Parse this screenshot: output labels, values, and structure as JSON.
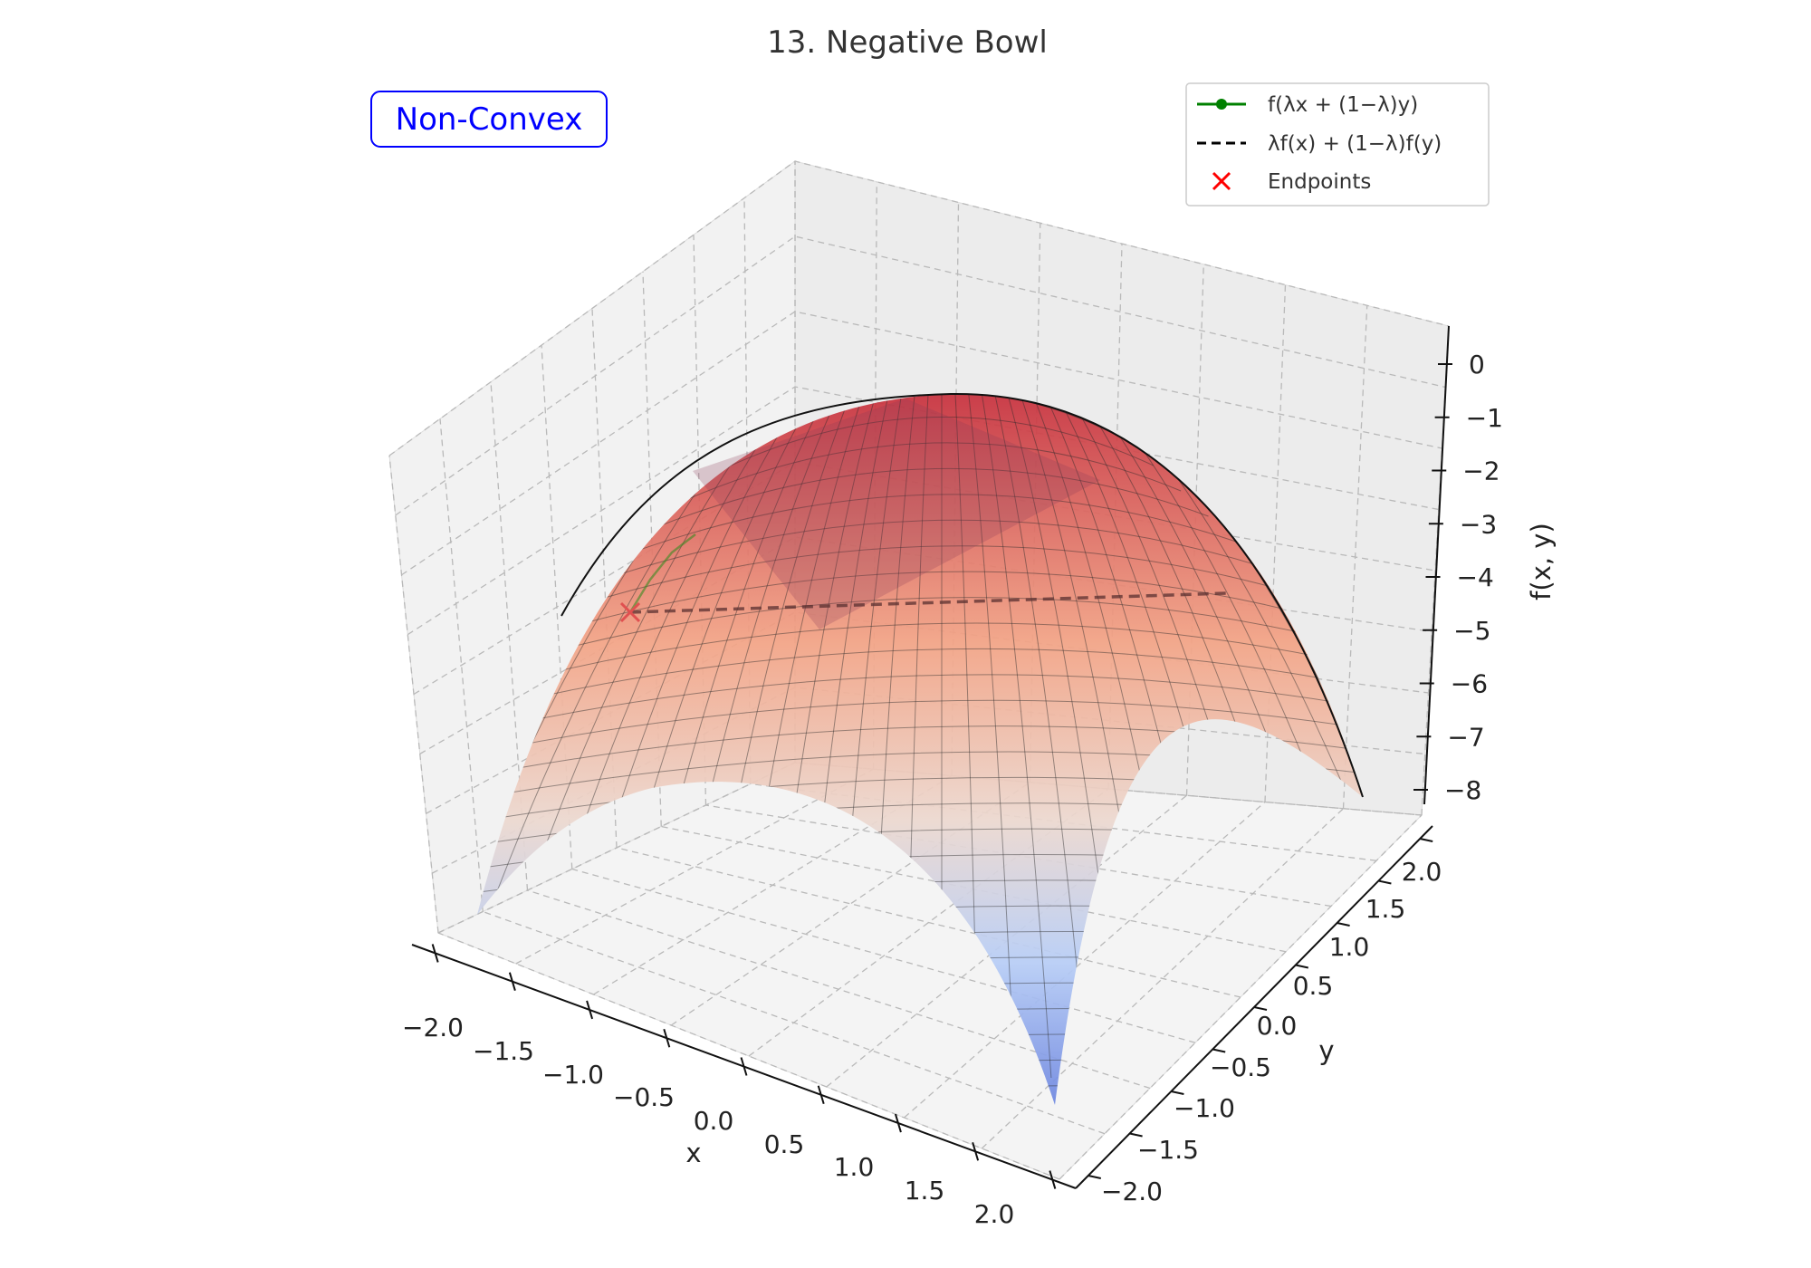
{
  "chart_data": {
    "type": "surface3d",
    "title": "13. Negative Bowl",
    "function": "f(x, y) = -(x^2 + y^2)",
    "xlabel": "x",
    "ylabel": "y",
    "zlabel": "f(x, y)",
    "xlim": [
      -2,
      2
    ],
    "ylim": [
      -2,
      2
    ],
    "zlim": [
      -8,
      0
    ],
    "x_ticks": [
      "−2.0",
      "−1.5",
      "−1.0",
      "−0.5",
      "0.0",
      "0.5",
      "1.0",
      "1.5",
      "2.0"
    ],
    "y_ticks": [
      "−2.0",
      "−1.5",
      "−1.0",
      "−0.5",
      "0.0",
      "0.5",
      "1.0",
      "1.5",
      "2.0"
    ],
    "z_ticks": [
      "0",
      "−1",
      "−2",
      "−3",
      "−4",
      "−5",
      "−6",
      "−7",
      "−8"
    ],
    "x_tick_values": [
      -2,
      -1.5,
      -1,
      -0.5,
      0,
      0.5,
      1,
      1.5,
      2
    ],
    "y_tick_values": [
      -2,
      -1.5,
      -1,
      -0.5,
      0,
      0.5,
      1,
      1.5,
      2
    ],
    "z_tick_values": [
      0,
      -1,
      -2,
      -3,
      -4,
      -5,
      -6,
      -7,
      -8
    ],
    "grid": true,
    "colormap": [
      "#3b4cc0",
      "#b40426"
    ],
    "legend_placement": "top-right",
    "legend": [
      {
        "label": "f(λx + (1−λ)y)",
        "style": "solid-marker",
        "color": "#008000"
      },
      {
        "label": "λf(x) + (1−λ)f(y)",
        "style": "dashed",
        "color": "#000000"
      },
      {
        "label": "Endpoints",
        "style": "x-marker",
        "color": "#ff0000"
      }
    ],
    "annotation": {
      "text": "Non-Convex",
      "color": "#0000ff"
    },
    "segment": {
      "endpoint_a": {
        "x": -2.0,
        "y": -1.0,
        "z": -5.0
      },
      "endpoint_b": {
        "x": 1.0,
        "y": 2.0,
        "z": -5.0
      }
    }
  }
}
